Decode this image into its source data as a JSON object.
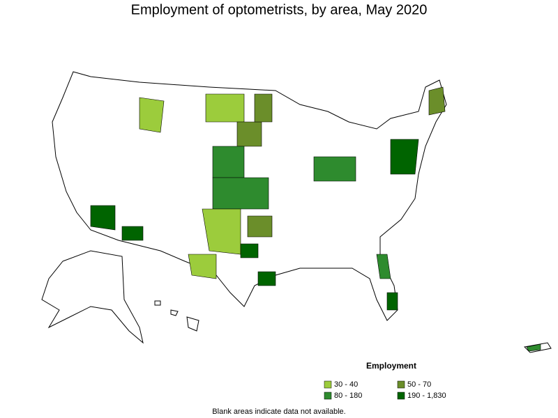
{
  "title": "Employment of optometrists, by area, May 2020",
  "legend": {
    "title": "Employment",
    "items": [
      {
        "label": "30 - 40",
        "color": "#9ccc3c"
      },
      {
        "label": "50 - 70",
        "color": "#6b8e2a"
      },
      {
        "label": "80 - 180",
        "color": "#2e8b2e"
      },
      {
        "label": "190 - 1,830",
        "color": "#006400"
      }
    ]
  },
  "note": "Blank areas indicate data not available."
}
